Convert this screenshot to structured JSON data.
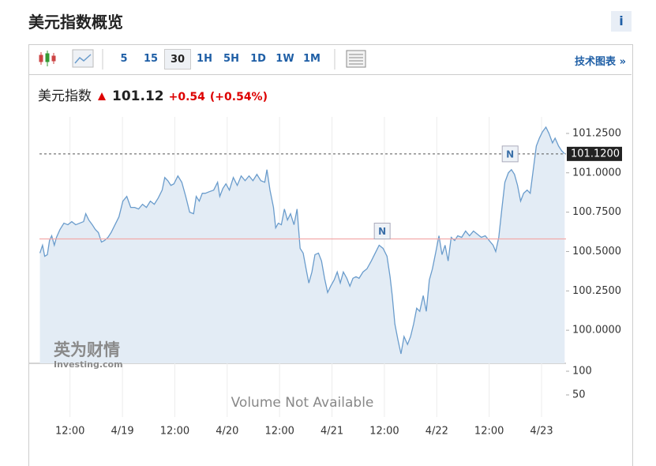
{
  "header": {
    "title": "美元指数概览",
    "info": "i"
  },
  "toolbar": {
    "intervals": [
      "5",
      "15",
      "30",
      "1H",
      "5H",
      "1D",
      "1W",
      "1M"
    ],
    "selected": 2,
    "link": "技术图表",
    "link_arrow": "»"
  },
  "quote": {
    "name": "美元指数",
    "price": "101.12",
    "change": "+0.54",
    "change_pct": "(+0.54%)"
  },
  "chart_data": {
    "type": "line",
    "color": "#6a9ccc",
    "fill": "#e3ecf5",
    "grid": "x",
    "x": [
      5.1,
      5.7,
      6.2,
      6.8,
      7.3,
      7.8,
      8.4,
      8.9,
      9.7,
      10.6,
      11.5,
      12.4,
      13.3,
      14.2,
      15.1,
      15.6,
      16.3,
      17.1,
      17.8,
      18.5,
      19.2,
      19.9,
      20.7,
      21.4,
      22.3,
      23.2,
      24.1,
      25.0,
      25.9,
      26.8,
      27.7,
      28.6,
      29.5,
      30.4,
      31.3,
      32.2,
      33.1,
      33.7,
      34.4,
      35.1,
      35.8,
      36.7,
      37.6,
      38.5,
      39.4,
      40.3,
      40.9,
      41.6,
      42.3,
      43.0,
      43.9,
      44.9,
      45.8,
      46.3,
      47.0,
      47.7,
      48.5,
      49.4,
      50.3,
      51.2,
      52.1,
      53.0,
      53.9,
      54.8,
      55.7,
      56.6,
      57.1,
      57.8,
      58.6,
      59.1,
      59.7,
      60.4,
      61.1,
      61.8,
      62.5,
      63.3,
      64.0,
      64.7,
      65.4,
      66.2,
      66.7,
      67.4,
      68.1,
      68.9,
      69.6,
      70.3,
      71.0,
      71.7,
      72.5,
      73.2,
      73.9,
      74.6,
      75.4,
      76.1,
      76.8,
      77.5,
      78.2,
      79.1,
      80.0,
      81.0,
      81.9,
      82.8,
      83.7,
      84.6,
      85.3,
      85.8,
      86.4,
      87.1,
      87.8,
      88.5,
      89.3,
      90.0,
      90.7,
      91.4,
      92.1,
      92.9,
      93.6,
      94.3,
      95.0,
      95.8,
      96.5,
      97.2,
      97.9,
      98.6,
      99.3,
      100.1,
      100.8,
      101.7,
      102.6,
      103.5,
      104.4,
      105.3,
      106.2,
      107.1,
      108.0,
      108.9,
      109.5,
      110.2,
      110.9,
      111.6,
      112.4,
      113.1,
      113.8,
      114.5,
      115.2,
      115.9,
      116.7,
      117.4,
      118.1,
      118.8,
      119.5,
      120.2,
      121.0,
      121.7,
      122.5,
      123.1,
      123.9,
      124.6,
      125.3
    ],
    "values": [
      100.49,
      100.54,
      100.47,
      100.48,
      100.57,
      100.6,
      100.54,
      100.59,
      100.64,
      100.68,
      100.67,
      100.69,
      100.67,
      100.68,
      100.69,
      100.74,
      100.7,
      100.67,
      100.64,
      100.62,
      100.56,
      100.57,
      100.59,
      100.62,
      100.67,
      100.72,
      100.82,
      100.85,
      100.78,
      100.78,
      100.77,
      100.8,
      100.78,
      100.82,
      100.8,
      100.84,
      100.89,
      100.97,
      100.95,
      100.92,
      100.93,
      100.98,
      100.94,
      100.85,
      100.75,
      100.74,
      100.85,
      100.82,
      100.87,
      100.87,
      100.88,
      100.89,
      100.94,
      100.85,
      100.9,
      100.93,
      100.89,
      100.97,
      100.92,
      100.98,
      100.95,
      100.98,
      100.95,
      100.99,
      100.95,
      100.94,
      101.02,
      100.89,
      100.78,
      100.65,
      100.68,
      100.67,
      100.77,
      100.7,
      100.74,
      100.67,
      100.77,
      100.52,
      100.49,
      100.37,
      100.3,
      100.37,
      100.48,
      100.49,
      100.44,
      100.33,
      100.24,
      100.28,
      100.32,
      100.37,
      100.3,
      100.37,
      100.33,
      100.28,
      100.33,
      100.34,
      100.33,
      100.37,
      100.39,
      100.44,
      100.49,
      100.54,
      100.52,
      100.47,
      100.34,
      100.22,
      100.04,
      99.94,
      99.85,
      99.96,
      99.91,
      99.96,
      100.04,
      100.14,
      100.12,
      100.22,
      100.12,
      100.32,
      100.39,
      100.5,
      100.6,
      100.48,
      100.54,
      100.44,
      100.59,
      100.57,
      100.6,
      100.59,
      100.63,
      100.6,
      100.63,
      100.61,
      100.59,
      100.6,
      100.57,
      100.54,
      100.5,
      100.59,
      100.77,
      100.94,
      101.0,
      101.02,
      100.99,
      100.92,
      100.82,
      100.87,
      100.89,
      100.87,
      101.02,
      101.17,
      101.22,
      101.26,
      101.29,
      101.25,
      101.19,
      101.22,
      101.17,
      101.14,
      101.12
    ],
    "xlim": [
      5,
      125.6
    ],
    "ylim": [
      99.79,
      101.355
    ],
    "xticks": [
      {
        "value": 12,
        "label": "12:00"
      },
      {
        "value": 24,
        "label": "4/19"
      },
      {
        "value": 36,
        "label": "12:00"
      },
      {
        "value": 48,
        "label": "4/20"
      },
      {
        "value": 60,
        "label": "12:00"
      },
      {
        "value": 72,
        "label": "4/21"
      },
      {
        "value": 84,
        "label": "12:00"
      },
      {
        "value": 96,
        "label": "4/22"
      },
      {
        "value": 108,
        "label": "12:00"
      },
      {
        "value": 120,
        "label": "4/23"
      }
    ],
    "yticks": [
      {
        "value": 101.25,
        "label": "101.2500"
      },
      {
        "value": 101,
        "label": "101.0000"
      },
      {
        "value": 100.75,
        "label": "100.7500"
      },
      {
        "value": 100.5,
        "label": "100.5000"
      },
      {
        "value": 100.25,
        "label": "100.2500"
      },
      {
        "value": 100,
        "label": "100.0000"
      }
    ],
    "reference_line": {
      "value": 100.58,
      "color": "#f2a9a9"
    },
    "last_value": {
      "value": 101.12,
      "label": "101.1200"
    },
    "annotations": [
      {
        "x": 83.5,
        "y": 100.63,
        "text": "N"
      },
      {
        "x": 112.8,
        "y": 101.12,
        "text": "N"
      }
    ],
    "watermark": {
      "text": "英为财情",
      "subtext": "Investing.com"
    },
    "volume_panel": {
      "text": "Volume Not Available",
      "ylim": [
        0,
        116.7
      ],
      "yticks": [
        50,
        100
      ]
    }
  }
}
